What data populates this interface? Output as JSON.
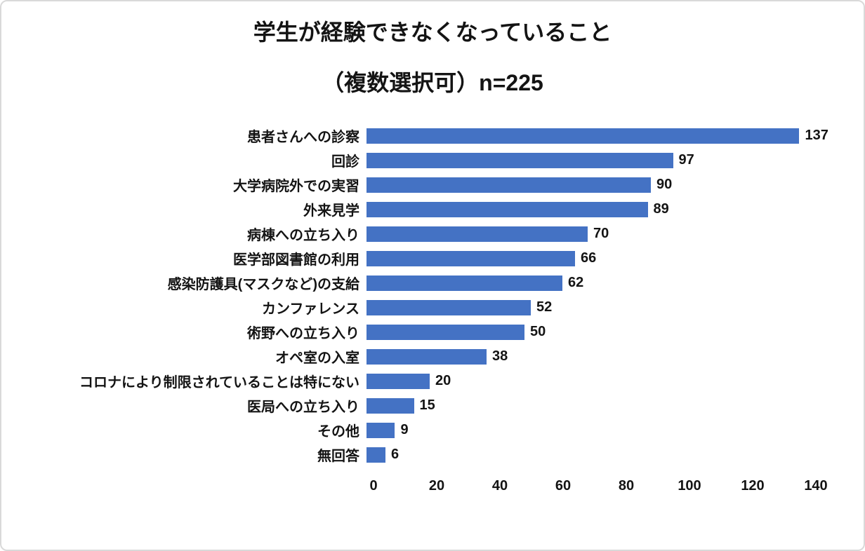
{
  "chart_data": {
    "type": "bar",
    "orientation": "horizontal",
    "title_line1": "学生が経験できなくなっていること",
    "title_line2": "（複数選択可）n=225",
    "categories": [
      "患者さんへの診察",
      "回診",
      "大学病院外での実習",
      "外来見学",
      "病棟への立ち入り",
      "医学部図書館の利用",
      "感染防護具(マスクなど)の支給",
      "カンファレンス",
      "術野への立ち入り",
      "オペ室の入室",
      "コロナにより制限されていることは特にない",
      "医局への立ち入り",
      "その他",
      "無回答"
    ],
    "values": [
      137,
      97,
      90,
      89,
      70,
      66,
      62,
      52,
      50,
      38,
      20,
      15,
      9,
      6
    ],
    "xlim": [
      0,
      140
    ],
    "xticks": [
      0,
      20,
      40,
      60,
      80,
      100,
      120,
      140
    ],
    "bar_color": "#4472C4",
    "grid": false,
    "value_labels": true,
    "legend": "none"
  }
}
